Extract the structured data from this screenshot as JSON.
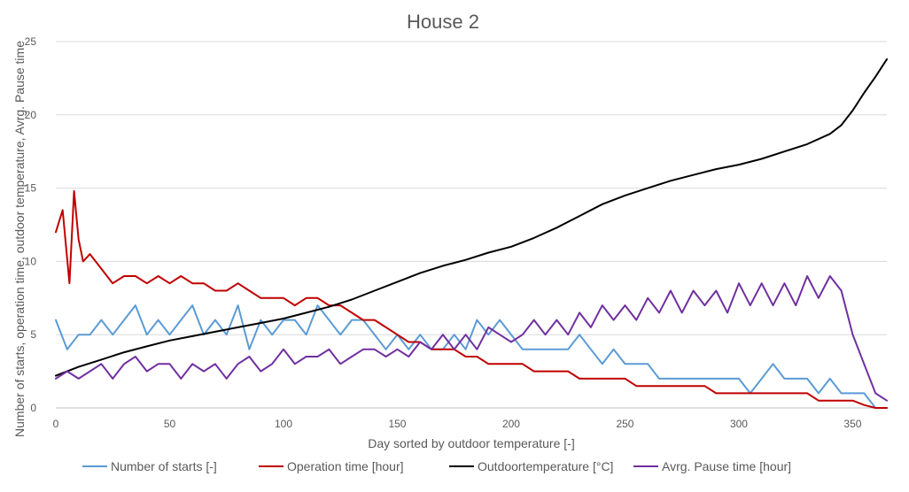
{
  "chart_data": {
    "type": "line",
    "title": "House 2",
    "xlabel": "Day sorted by outdoor temperature [-]",
    "ylabel": "Number of starts, operation time, outdoor temperature, Avrg. Pause time",
    "xlim": [
      0,
      365
    ],
    "ylim": [
      0,
      25
    ],
    "xticks": [
      0,
      50,
      100,
      150,
      200,
      250,
      300,
      350
    ],
    "yticks": [
      0,
      5,
      10,
      15,
      20,
      25
    ],
    "grid": "horizontal",
    "legend_position": "bottom",
    "series": [
      {
        "name": "Number of starts [-]",
        "color": "#5b9bd5",
        "x": [
          0,
          5,
          10,
          15,
          20,
          25,
          30,
          35,
          40,
          45,
          50,
          55,
          60,
          65,
          70,
          75,
          80,
          85,
          90,
          95,
          100,
          105,
          110,
          115,
          120,
          125,
          130,
          135,
          140,
          145,
          150,
          155,
          160,
          165,
          170,
          175,
          180,
          185,
          190,
          195,
          200,
          205,
          210,
          215,
          220,
          225,
          230,
          235,
          240,
          245,
          250,
          255,
          260,
          265,
          270,
          275,
          280,
          285,
          290,
          295,
          300,
          305,
          310,
          315,
          320,
          325,
          330,
          335,
          340,
          345,
          350,
          355,
          360,
          365
        ],
        "values": [
          6,
          4,
          5,
          5,
          6,
          5,
          6,
          7,
          5,
          6,
          5,
          6,
          7,
          5,
          6,
          5,
          7,
          4,
          6,
          5,
          6,
          6,
          5,
          7,
          6,
          5,
          6,
          6,
          5,
          4,
          5,
          4,
          5,
          4,
          4,
          5,
          4,
          6,
          5,
          6,
          5,
          4,
          4,
          4,
          4,
          4,
          5,
          4,
          3,
          4,
          3,
          3,
          3,
          2,
          2,
          2,
          2,
          2,
          2,
          2,
          2,
          1,
          2,
          3,
          2,
          2,
          2,
          1,
          2,
          1,
          1,
          1,
          0,
          0
        ]
      },
      {
        "name": "Operation time [hour]",
        "color": "#c00000",
        "x": [
          0,
          3,
          6,
          8,
          10,
          12,
          15,
          20,
          25,
          30,
          35,
          40,
          45,
          50,
          55,
          60,
          65,
          70,
          75,
          80,
          85,
          90,
          95,
          100,
          105,
          110,
          115,
          120,
          125,
          130,
          135,
          140,
          145,
          150,
          155,
          160,
          165,
          170,
          175,
          180,
          185,
          190,
          195,
          200,
          205,
          210,
          215,
          220,
          225,
          230,
          235,
          240,
          245,
          250,
          255,
          260,
          265,
          270,
          275,
          280,
          285,
          290,
          295,
          300,
          305,
          310,
          315,
          320,
          325,
          330,
          335,
          340,
          345,
          350,
          355,
          360,
          365
        ],
        "values": [
          12,
          13.5,
          8.5,
          14.8,
          11.5,
          10,
          10.5,
          9.5,
          8.5,
          9,
          9,
          8.5,
          9,
          8.5,
          9,
          8.5,
          8.5,
          8,
          8,
          8.5,
          8,
          7.5,
          7.5,
          7.5,
          7,
          7.5,
          7.5,
          7,
          7,
          6.5,
          6,
          6,
          5.5,
          5,
          4.5,
          4.5,
          4,
          4,
          4,
          3.5,
          3.5,
          3,
          3,
          3,
          3,
          2.5,
          2.5,
          2.5,
          2.5,
          2,
          2,
          2,
          2,
          2,
          1.5,
          1.5,
          1.5,
          1.5,
          1.5,
          1.5,
          1.5,
          1,
          1,
          1,
          1,
          1,
          1,
          1,
          1,
          1,
          0.5,
          0.5,
          0.5,
          0.5,
          0.2,
          0,
          0
        ]
      },
      {
        "name": "Outdoortemperature [°C]",
        "color": "#000000",
        "x": [
          0,
          10,
          20,
          30,
          40,
          50,
          60,
          70,
          80,
          90,
          100,
          110,
          120,
          130,
          140,
          150,
          160,
          170,
          180,
          190,
          200,
          210,
          220,
          230,
          240,
          250,
          260,
          270,
          280,
          290,
          300,
          310,
          320,
          330,
          340,
          345,
          350,
          355,
          360,
          365
        ],
        "values": [
          2.2,
          2.8,
          3.3,
          3.8,
          4.2,
          4.6,
          4.9,
          5.2,
          5.5,
          5.8,
          6.1,
          6.5,
          6.9,
          7.4,
          8.0,
          8.6,
          9.2,
          9.7,
          10.1,
          10.6,
          11.0,
          11.6,
          12.3,
          13.1,
          13.9,
          14.5,
          15.0,
          15.5,
          15.9,
          16.3,
          16.6,
          17.0,
          17.5,
          18.0,
          18.7,
          19.3,
          20.3,
          21.5,
          22.6,
          23.8
        ]
      },
      {
        "name": "Avrg. Pause time [hour]",
        "color": "#7030a0",
        "x": [
          0,
          5,
          10,
          15,
          20,
          25,
          30,
          35,
          40,
          45,
          50,
          55,
          60,
          65,
          70,
          75,
          80,
          85,
          90,
          95,
          100,
          105,
          110,
          115,
          120,
          125,
          130,
          135,
          140,
          145,
          150,
          155,
          160,
          165,
          170,
          175,
          180,
          185,
          190,
          195,
          200,
          205,
          210,
          215,
          220,
          225,
          230,
          235,
          240,
          245,
          250,
          255,
          260,
          265,
          270,
          275,
          280,
          285,
          290,
          295,
          300,
          305,
          310,
          315,
          320,
          325,
          330,
          335,
          340,
          345,
          350,
          355,
          360,
          365
        ],
        "values": [
          2,
          2.5,
          2,
          2.5,
          3,
          2,
          3,
          3.5,
          2.5,
          3,
          3,
          2,
          3,
          2.5,
          3,
          2,
          3,
          3.5,
          2.5,
          3,
          4,
          3,
          3.5,
          3.5,
          4,
          3,
          3.5,
          4,
          4,
          3.5,
          4,
          3.5,
          4.5,
          4,
          5,
          4,
          5,
          4,
          5.5,
          5,
          4.5,
          5,
          6,
          5,
          6,
          5,
          6.5,
          5.5,
          7,
          6,
          7,
          6,
          7.5,
          6.5,
          8,
          6.5,
          8,
          7,
          8,
          6.5,
          8.5,
          7,
          8.5,
          7,
          8.5,
          7,
          9,
          7.5,
          9,
          8,
          5,
          3,
          1,
          0.5
        ]
      }
    ]
  }
}
